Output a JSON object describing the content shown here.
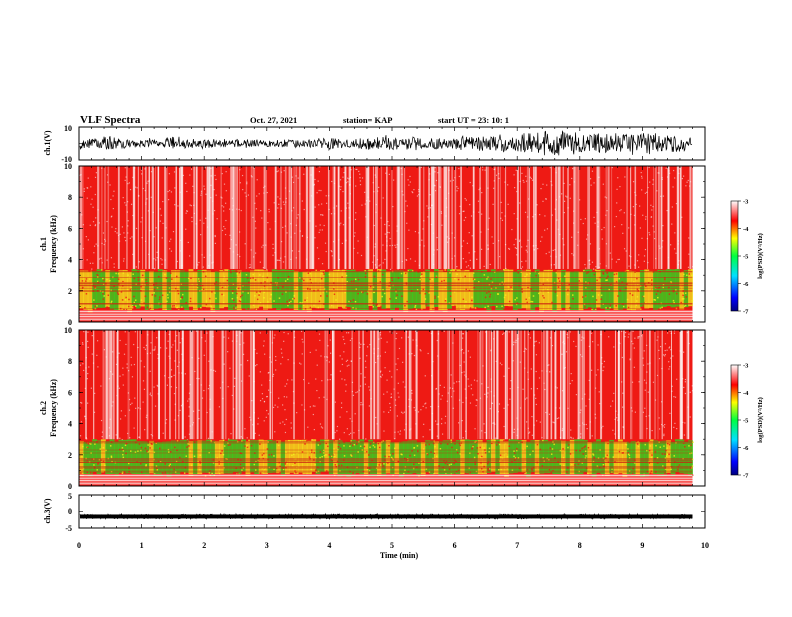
{
  "header": {
    "title": "VLF Spectra",
    "date": "Oct. 27, 2021",
    "station": "station= KAP",
    "start": "start  UT  =   23: 10: 1"
  },
  "chart_data": [
    {
      "id": "ch1-waveform",
      "type": "line",
      "ylabel": "ch.1(V)",
      "ylim": [
        -10,
        10
      ],
      "yticks": [
        "10",
        "-10"
      ],
      "xlim": [
        0,
        10
      ],
      "signal": "noisy waveform spanning roughly -8 to 8 V over 0 to 9.8 min"
    },
    {
      "id": "ch1-spectrogram",
      "type": "heatmap",
      "ylabel_line1": "ch.1",
      "ylabel_line2": "Frequency  (kHz)",
      "ylim": [
        0,
        10
      ],
      "yticks": [
        "0",
        "2",
        "4",
        "6",
        "8",
        "10"
      ],
      "xlim": [
        0,
        10
      ],
      "data_end_min": 9.8,
      "low_band_khz": [
        0.8,
        3.4
      ],
      "colorbar": {
        "label": "log(PSD)(V²/Hz)",
        "ticks": [
          "-3",
          "-4",
          "-5",
          "-6",
          "-7"
        ],
        "range": [
          -7,
          -3
        ]
      }
    },
    {
      "id": "ch2-spectrogram",
      "type": "heatmap",
      "ylabel_line1": "ch.2",
      "ylabel_line2": "Frequency  (kHz)",
      "ylim": [
        0,
        10
      ],
      "yticks": [
        "0",
        "2",
        "4",
        "6",
        "8",
        "10"
      ],
      "xlim": [
        0,
        10
      ],
      "data_end_min": 9.8,
      "low_band_khz": [
        0.7,
        3.0
      ],
      "colorbar": {
        "label": "log(PSD)(V²/Hz)",
        "ticks": [
          "-3",
          "-4",
          "-5",
          "-6",
          "-7"
        ],
        "range": [
          -7,
          -3
        ]
      }
    },
    {
      "id": "ch3-waveform",
      "type": "line",
      "ylabel": "ch.3(V)",
      "ylim": [
        -5,
        5
      ],
      "yticks": [
        "5",
        "0",
        "-5"
      ],
      "xlim": [
        0,
        10
      ],
      "signal": "nearly constant band around -1.5 V over 0 to 9.8 min"
    }
  ],
  "xaxis": {
    "label": "Time  (min)",
    "ticks": [
      "0",
      "1",
      "2",
      "3",
      "4",
      "5",
      "6",
      "7",
      "8",
      "9",
      "10"
    ],
    "range": [
      0,
      10
    ]
  },
  "colors": {
    "spectrogram_background": "#ee1a14",
    "band_green": "#22e21e",
    "band_yellow": "#f2f21c"
  }
}
